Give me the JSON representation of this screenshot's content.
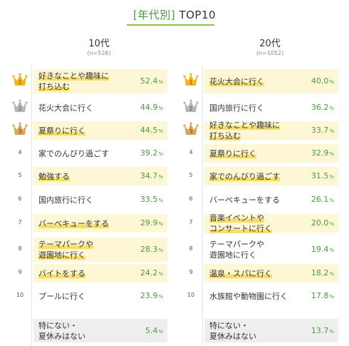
{
  "title": {
    "tag": "[年代別]",
    "rest": "TOP10"
  },
  "colors": {
    "accent": "#4a9b3d",
    "highlight": "#f6df68",
    "highlight_bg": "#fdf7d6",
    "gold": "#f2b51e",
    "silver": "#b7b7b7",
    "bronze": "#dba55a"
  },
  "chart_data": [
    {
      "type": "table",
      "title": "10代",
      "subtitle": "(n=526)",
      "unit": "%",
      "rows": [
        {
          "rank": "1",
          "line1": "好きなことや趣味に",
          "line2": "打ち込む",
          "value": 52.4,
          "value_text": "52.4",
          "highlight": true,
          "crown": "gold"
        },
        {
          "rank": "2",
          "line1": "花火大会に行く",
          "line2": "",
          "value": 44.9,
          "value_text": "44.9",
          "highlight": false,
          "crown": "silver"
        },
        {
          "rank": "3",
          "line1": "夏祭りに行く",
          "line2": "",
          "value": 44.5,
          "value_text": "44.5",
          "highlight": true,
          "crown": "bronze"
        },
        {
          "rank": "4",
          "line1": "家でのんびり過ごす",
          "line2": "",
          "value": 39.2,
          "value_text": "39.2",
          "highlight": false,
          "crown": ""
        },
        {
          "rank": "5",
          "line1": "勉強する",
          "line2": "",
          "value": 34.7,
          "value_text": "34.7",
          "highlight": true,
          "crown": ""
        },
        {
          "rank": "6",
          "line1": "国内旅行に行く",
          "line2": "",
          "value": 33.5,
          "value_text": "33.5",
          "highlight": false,
          "crown": ""
        },
        {
          "rank": "7",
          "line1": "バーベキューをする",
          "line2": "",
          "value": 29.9,
          "value_text": "29.9",
          "highlight": true,
          "crown": ""
        },
        {
          "rank": "8",
          "line1": "テーマパークや",
          "line2": "遊園地に行く",
          "value": 28.3,
          "value_text": "28.3",
          "highlight": true,
          "crown": ""
        },
        {
          "rank": "9",
          "line1": "バイトをする",
          "line2": "",
          "value": 24.2,
          "value_text": "24.2",
          "highlight": true,
          "crown": ""
        },
        {
          "rank": "10",
          "line1": "プールに行く",
          "line2": "",
          "value": 23.9,
          "value_text": "23.9",
          "highlight": false,
          "crown": ""
        }
      ],
      "extra": {
        "line1": "特にない・",
        "line2": "夏休みはない",
        "value": 5.4,
        "value_text": "5.4"
      }
    },
    {
      "type": "table",
      "title": "20代",
      "subtitle": "(n=1052)",
      "unit": "%",
      "rows": [
        {
          "rank": "1",
          "line1": "花火大会に行く",
          "line2": "",
          "value": 40.0,
          "value_text": "40.0",
          "highlight": true,
          "crown": "gold"
        },
        {
          "rank": "2",
          "line1": "国内旅行に行く",
          "line2": "",
          "value": 36.2,
          "value_text": "36.2",
          "highlight": false,
          "crown": "silver"
        },
        {
          "rank": "3",
          "line1": "好きなことや趣味に",
          "line2": "打ち込む",
          "value": 33.7,
          "value_text": "33.7",
          "highlight": true,
          "crown": "bronze"
        },
        {
          "rank": "4",
          "line1": "夏祭りに行く",
          "line2": "",
          "value": 32.9,
          "value_text": "32.9",
          "highlight": true,
          "crown": ""
        },
        {
          "rank": "5",
          "line1": "家でのんびり過ごす",
          "line2": "",
          "value": 31.5,
          "value_text": "31.5",
          "highlight": true,
          "crown": ""
        },
        {
          "rank": "6",
          "line1": "バーベキューをする",
          "line2": "",
          "value": 26.1,
          "value_text": "26.1",
          "highlight": false,
          "crown": ""
        },
        {
          "rank": "7",
          "line1": "音楽イベントや",
          "line2": "コンサートに行く",
          "value": 20.0,
          "value_text": "20.0",
          "highlight": true,
          "crown": ""
        },
        {
          "rank": "8",
          "line1": "テーマパークや",
          "line2": "遊園地に行く",
          "value": 19.4,
          "value_text": "19.4",
          "highlight": false,
          "crown": ""
        },
        {
          "rank": "9",
          "line1": "温泉・スパに行く",
          "line2": "",
          "value": 18.2,
          "value_text": "18.2",
          "highlight": true,
          "crown": ""
        },
        {
          "rank": "10",
          "line1": "水族館や動物園に行く",
          "line2": "",
          "value": 17.8,
          "value_text": "17.8",
          "highlight": false,
          "crown": ""
        }
      ],
      "extra": {
        "line1": "特にない・",
        "line2": "夏休みはない",
        "value": 13.7,
        "value_text": "13.7"
      }
    }
  ]
}
